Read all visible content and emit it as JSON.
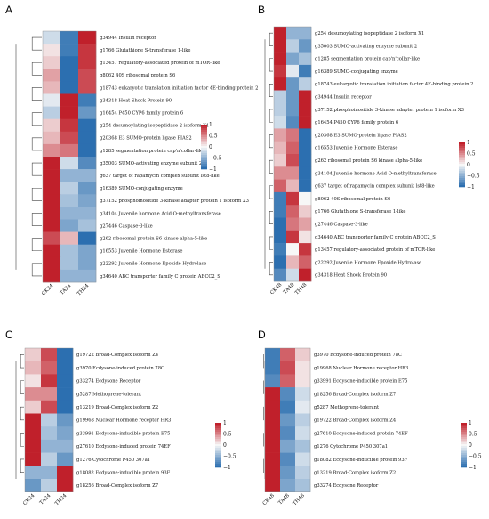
{
  "legend": {
    "ticks": [
      "1",
      "0.5",
      "0",
      "−0.5",
      "−1"
    ],
    "range": [
      -1,
      1
    ]
  },
  "colors": {
    "low": "#2c6fb0",
    "mid": "#f7f7f7",
    "high": "#c0202b"
  },
  "chart_data": [
    {
      "type": "heatmap",
      "panel": "A",
      "columns": [
        "CK24",
        "TA24",
        "TH24"
      ],
      "rows": [
        "g34944 Insulin receptor",
        "g1766 Glutathione S-transferase 1-like",
        "g13457 regulatory-associated protein of mTOR-like",
        "g8062 40S ribosomal protein S6",
        "g18743 eukaryotic translation initiation factor 4E-binding protein 2",
        "g34318 Heat Shock Protein 90",
        "g16454 P450 CYP6 family protein 6",
        "g254 desumoylating isopeptidase 2 isoform X1",
        "g20368 E3 SUMO-protein ligase PIAS2",
        "g1285 segmentation protein cap'n'collar-like",
        "g35003 SUMO-activating enzyme subunit 2",
        "g637 target of rapamycin complex subunit lst8-like",
        "g16389 SUMO-conjugating enzyme",
        "g37152 phosphoinositide 3-kinase adapter protein 1 isoform X3",
        "g34104 Juvenile hormone Acid O-methyltransferase",
        "g27446 Caspase-3-like",
        "g262 ribosomal protein S6 kinase alpha-5-like",
        "g16553 Juvenile Hormone Esterase",
        "g22292 Juvenile Hormone Epoxide Hydrolase",
        "g34640 ABC transporter family C protein ABCC2_S"
      ],
      "values": [
        [
          -0.2,
          -0.9,
          1.0
        ],
        [
          0.1,
          -0.9,
          0.9
        ],
        [
          0.2,
          -1.0,
          0.9
        ],
        [
          0.4,
          -1.0,
          0.8
        ],
        [
          0.3,
          -1.0,
          0.8
        ],
        [
          -0.1,
          1.0,
          -0.9
        ],
        [
          -0.3,
          1.0,
          -0.7
        ],
        [
          0.2,
          0.9,
          -1.0
        ],
        [
          0.3,
          0.8,
          -1.0
        ],
        [
          0.5,
          0.6,
          -1.0
        ],
        [
          1.0,
          -0.2,
          -0.8
        ],
        [
          1.0,
          -0.5,
          -0.5
        ],
        [
          1.0,
          -0.3,
          -0.7
        ],
        [
          1.0,
          -0.4,
          -0.6
        ],
        [
          1.0,
          -0.5,
          -0.5
        ],
        [
          1.0,
          -0.6,
          -0.4
        ],
        [
          0.8,
          0.3,
          -1.0
        ],
        [
          1.0,
          -0.4,
          -0.6
        ],
        [
          1.0,
          -0.4,
          -0.6
        ],
        [
          1.0,
          -0.5,
          -0.5
        ]
      ]
    },
    {
      "type": "heatmap",
      "panel": "B",
      "columns": [
        "CK48",
        "TA48",
        "TH48"
      ],
      "rows": [
        "g254 desumoylating isopeptidase 2 isoform X1",
        "g35003 SUMO-activating enzyme subunit 2",
        "g1285 segmentation protein cap'n'collar-like",
        "g16389 SUMO-conjugating enzyme",
        "g18743 eukaryotic translation initiation factor 4E-binding protein 2",
        "g34944 Insulin receptor",
        "g37152 phosphoinositide 3-kinase adapter protein 1 isoform X3",
        "g16454 P450 CYP6 family protein 6",
        "g20368 E3 SUMO-protein ligase PIAS2",
        "g16553 Juvenile Hormone Esterase",
        "g262 ribosomal protein S6 kinase alpha-5-like",
        "g34104 Juvenile hormone Acid O-methyltransferase",
        "g637 target of rapamycin complex subunit lst8-like",
        "g8062 40S ribosomal protein S6",
        "g1766 Glutathione S-transferase 1-like",
        "g27446 Caspase-3-like",
        "g34640 ABC transporter family C protein ABCC2_S",
        "g13457 regulatory-associated protein of mTOR-like",
        "g22292 Juvenile Hormone Epoxide Hydrolase",
        "g34318 Heat Shock Protein 90"
      ],
      "values": [
        [
          1.0,
          -0.5,
          -0.5
        ],
        [
          1.0,
          -0.3,
          -0.7
        ],
        [
          1.0,
          -0.6,
          -0.4
        ],
        [
          0.9,
          -0.1,
          -0.9
        ],
        [
          1.0,
          -0.7,
          -0.3
        ],
        [
          -0.3,
          -0.7,
          1.0
        ],
        [
          -0.3,
          -0.7,
          1.0
        ],
        [
          -0.2,
          -0.8,
          1.0
        ],
        [
          0.4,
          0.6,
          -1.0
        ],
        [
          0.3,
          0.7,
          -1.0
        ],
        [
          0.2,
          0.8,
          -1.0
        ],
        [
          0.5,
          0.5,
          -1.0
        ],
        [
          0.7,
          0.3,
          -1.0
        ],
        [
          -0.9,
          0.9,
          0.0
        ],
        [
          -0.9,
          0.7,
          0.2
        ],
        [
          -1.0,
          0.6,
          0.4
        ],
        [
          -1.0,
          0.9,
          0.1
        ],
        [
          -0.9,
          0.0,
          0.9
        ],
        [
          -1.0,
          0.3,
          0.7
        ],
        [
          -0.8,
          -0.2,
          1.0
        ]
      ]
    },
    {
      "type": "heatmap",
      "panel": "C",
      "columns": [
        "CK24",
        "TA24",
        "TH24"
      ],
      "rows": [
        "g19722 Broad-Complex isoform Z4",
        "g3970 Ecdysone-induced protein 78C",
        "g33274 Ecdysone Receptor",
        "g5287 Methoprene-tolerant",
        "g13219 Broad-Complex isoform Z2",
        "g19968 Nuclear Hormone receptor HR3",
        "g33991 Ecdysone-inducible protein E75",
        "g27610 Ecdysone-induced protein 74EF",
        "g1276 Cytochrome P450 307a1",
        "g18082 Ecdysone-inducible protein 93F",
        "g18256 Broad-Complex isoform Z7"
      ],
      "values": [
        [
          0.2,
          0.8,
          -1.0
        ],
        [
          0.3,
          0.7,
          -1.0
        ],
        [
          0.1,
          0.9,
          -1.0
        ],
        [
          0.5,
          0.5,
          -1.0
        ],
        [
          0.2,
          0.8,
          -1.0
        ],
        [
          1.0,
          -0.3,
          -0.7
        ],
        [
          1.0,
          -0.4,
          -0.6
        ],
        [
          1.0,
          -0.5,
          -0.5
        ],
        [
          1.0,
          -0.3,
          -0.7
        ],
        [
          -0.5,
          -0.5,
          1.0
        ],
        [
          -0.7,
          -0.3,
          1.0
        ]
      ]
    },
    {
      "type": "heatmap",
      "panel": "D",
      "columns": [
        "CK48",
        "TA48",
        "TH48"
      ],
      "rows": [
        "g3970 Ecdysone-induced protein 78C",
        "g19968 Nuclear Hormone receptor HR3",
        "g33991 Ecdysone-inducible protein E75",
        "g18256 Broad-Complex isoform Z7",
        "g5287 Methoprene-tolerant",
        "g19722 Broad-Complex isoform Z4",
        "g27610 Ecdysone-induced protein 74EF",
        "g1276 Cytochrome P450 307a1",
        "g18082 Ecdysone-inducible protein 93F",
        "g13219 Broad-Complex isoform Z2",
        "g33274 Ecdysone Receptor"
      ],
      "values": [
        [
          -0.9,
          0.7,
          0.2
        ],
        [
          -0.9,
          0.8,
          0.1
        ],
        [
          -0.8,
          0.7,
          0.1
        ],
        [
          1.0,
          -0.8,
          -0.2
        ],
        [
          1.0,
          -0.9,
          -0.1
        ],
        [
          1.0,
          -0.7,
          -0.3
        ],
        [
          1.0,
          -0.8,
          -0.2
        ],
        [
          1.0,
          -0.6,
          -0.4
        ],
        [
          1.0,
          -0.8,
          -0.2
        ],
        [
          1.0,
          -0.7,
          -0.3
        ],
        [
          1.0,
          -0.6,
          -0.4
        ]
      ]
    }
  ]
}
